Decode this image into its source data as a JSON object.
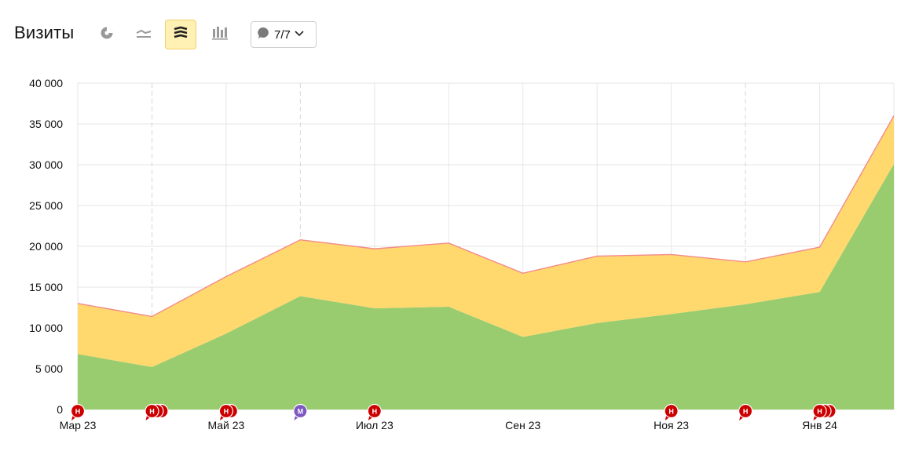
{
  "header": {
    "title": "Визиты",
    "annotations_count": "7/7",
    "view_buttons": [
      {
        "name": "pie-chart-view-button",
        "icon": "pie-chart-icon",
        "active": false
      },
      {
        "name": "line-chart-view-button",
        "icon": "line-chart-icon",
        "active": false
      },
      {
        "name": "stacked-area-view-button",
        "icon": "stacked-area-icon",
        "active": true
      },
      {
        "name": "bar-chart-view-button",
        "icon": "bar-chart-icon",
        "active": false
      }
    ]
  },
  "colors": {
    "series_green": "#99cc6e",
    "series_yellow": "#ffd86e",
    "top_line": "#f28b8b",
    "grid": "#e6e6e6",
    "annotation_red": "#cc0000",
    "annotation_purple": "#7e57c2",
    "active_button": "#fff0b3"
  },
  "chart_data": {
    "type": "area",
    "stacked": true,
    "title": "",
    "xlabel": "",
    "ylabel": "",
    "ylim": [
      0,
      40000
    ],
    "y_ticks": [
      0,
      5000,
      10000,
      15000,
      20000,
      25000,
      30000,
      35000,
      40000
    ],
    "y_tick_labels": [
      "0",
      "5 000",
      "10 000",
      "15 000",
      "20 000",
      "25 000",
      "30 000",
      "35 000",
      "40 000"
    ],
    "x": [
      "2023-03",
      "2023-04",
      "2023-05",
      "2023-06",
      "2023-07",
      "2023-08",
      "2023-09",
      "2023-10",
      "2023-11",
      "2023-12",
      "2024-01",
      "2024-02"
    ],
    "x_tick_labels": [
      "Мар 23",
      "",
      "Май 23",
      "",
      "Июл 23",
      "",
      "Сен 23",
      "",
      "Ноя 23",
      "",
      "Янв 24",
      ""
    ],
    "series": [
      {
        "color": "#99cc6e",
        "values": [
          6800,
          5200,
          9300,
          13900,
          12400,
          12600,
          8900,
          10600,
          11700,
          12900,
          14400,
          30100
        ]
      },
      {
        "color": "#ffd86e",
        "values": [
          6200,
          6200,
          7000,
          6900,
          7300,
          7800,
          7800,
          8200,
          7300,
          5200,
          5500,
          5900
        ]
      }
    ],
    "grid": true,
    "dashed_gridlines_at": [
      "2023-04",
      "2023-06",
      "2023-12"
    ],
    "annotations": [
      {
        "x": "2023-03",
        "label": "Н",
        "kind": "red",
        "count": 1
      },
      {
        "x": "2023-04",
        "label": "Н",
        "kind": "red",
        "count": 3
      },
      {
        "x": "2023-05",
        "label": "Н",
        "kind": "red",
        "count": 2
      },
      {
        "x": "2023-06",
        "label": "М",
        "kind": "purple",
        "count": 1
      },
      {
        "x": "2023-07",
        "label": "Н",
        "kind": "red",
        "count": 1
      },
      {
        "x": "2023-11",
        "label": "Н",
        "kind": "red",
        "count": 1
      },
      {
        "x": "2023-12",
        "label": "Н",
        "kind": "red",
        "count": 1
      },
      {
        "x": "2024-01",
        "label": "Н",
        "kind": "red",
        "count": 3
      }
    ]
  }
}
